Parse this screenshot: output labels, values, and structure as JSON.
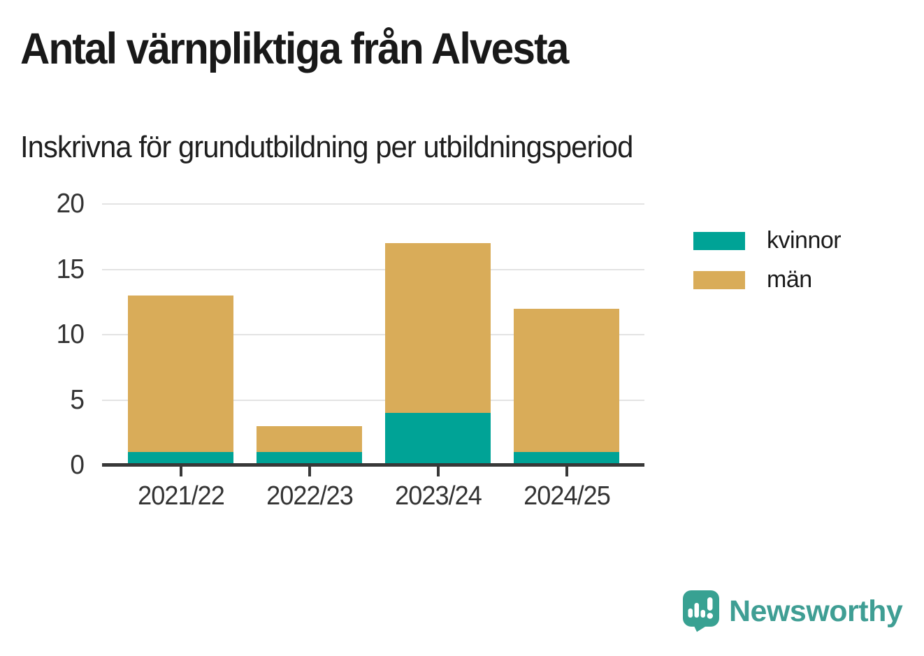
{
  "title": "Antal värnpliktiga från Alvesta",
  "subtitle": "Inskrivna för grundutbildning per utbildningsperiod",
  "chart_data": {
    "type": "bar",
    "stacked": true,
    "title": "Antal värnpliktiga från Alvesta",
    "subtitle": "Inskrivna för grundutbildning per utbildningsperiod",
    "categories": [
      "2021/22",
      "2022/23",
      "2023/24",
      "2024/25"
    ],
    "series": [
      {
        "name": "kvinnor",
        "color": "#00a396",
        "values": [
          1,
          1,
          4,
          1
        ]
      },
      {
        "name": "män",
        "color": "#d9ac59",
        "values": [
          12,
          2,
          13,
          11
        ]
      }
    ],
    "totals": [
      13,
      3,
      17,
      12
    ],
    "xlabel": "",
    "ylabel": "",
    "ylim": [
      0,
      20
    ],
    "yticks": [
      0,
      5,
      10,
      15,
      20
    ],
    "grid": "horizontal",
    "legend_position": "right"
  },
  "legend": {
    "items": [
      {
        "label": "kvinnor",
        "color": "#00a396"
      },
      {
        "label": "män",
        "color": "#d9ac59"
      }
    ]
  },
  "branding": {
    "logo_text": "Newsworthy",
    "logo_icon": "newsworthy-bubble-bar-chart-icon",
    "logo_color": "#3f9e94",
    "icon_color": "#38a192"
  },
  "style_colors": {
    "grid": "#e3e3e3",
    "axis": "#383838",
    "axis_text": "#333333",
    "title_text": "#191919"
  }
}
